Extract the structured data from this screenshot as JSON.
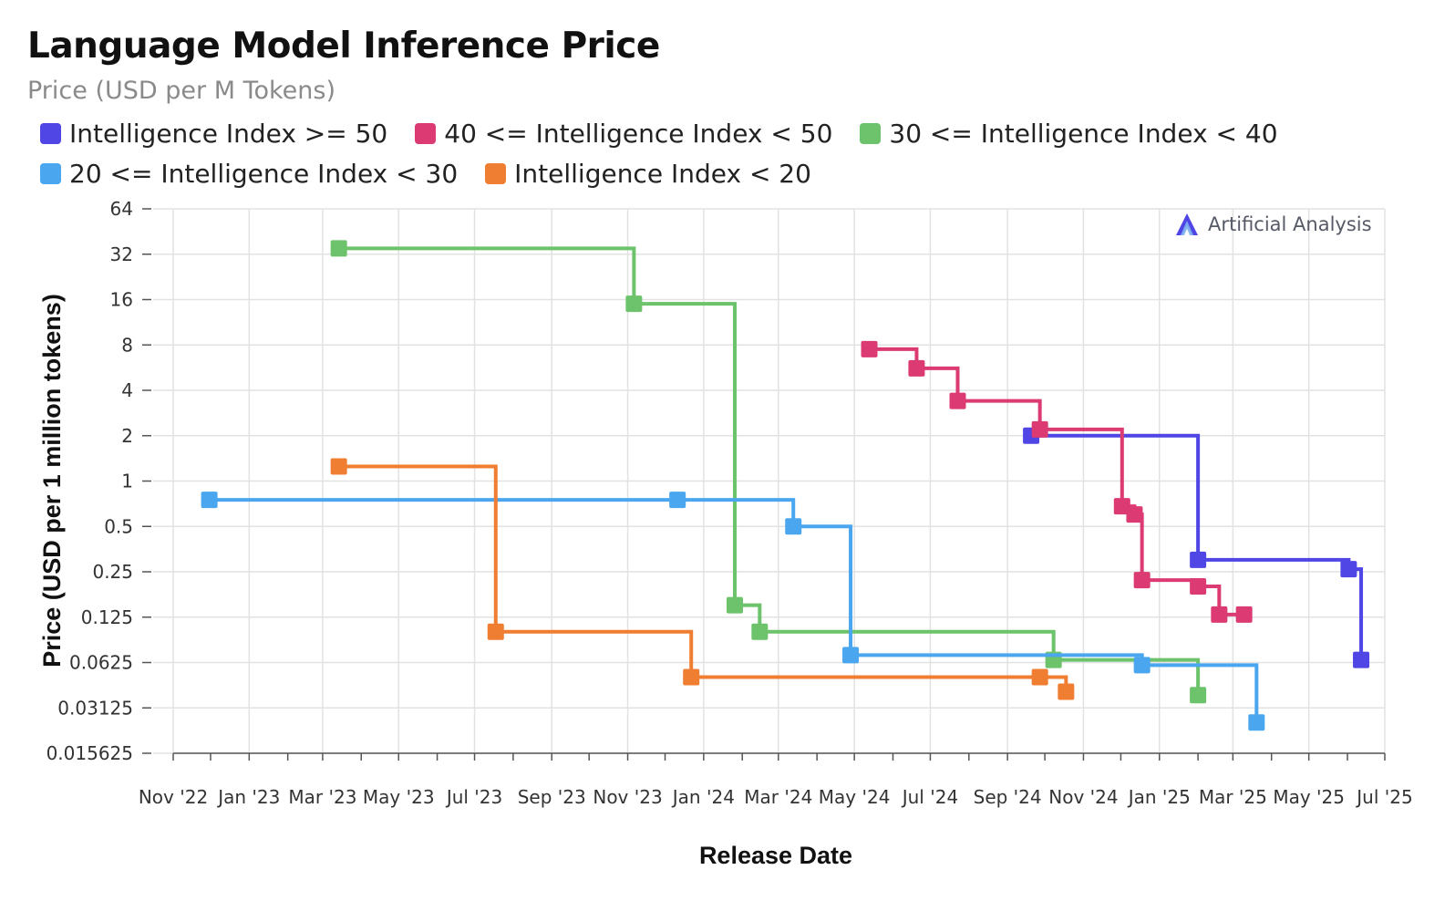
{
  "title": "Language Model Inference Price",
  "subtitle": "Price (USD per M Tokens)",
  "watermark": "Artificial Analysis",
  "chart_data": {
    "type": "line",
    "step": true,
    "xlabel": "Release Date",
    "ylabel": "Price (USD per 1 million tokens)",
    "yscale": "log2",
    "ylim": [
      0.015625,
      64
    ],
    "yticks": [
      64,
      32,
      16,
      8,
      4,
      2,
      1,
      0.5,
      0.25,
      0.125,
      0.0625,
      0.03125,
      0.015625
    ],
    "ytick_labels": [
      "64",
      "32",
      "16",
      "8",
      "4",
      "2",
      "1",
      "0.5",
      "0.25",
      "0.125",
      "0.0625",
      "0.03125",
      "0.015625"
    ],
    "xlim": [
      "2022-11-01",
      "2025-07-01"
    ],
    "xticks": [
      "2022-11-01",
      "2023-01-01",
      "2023-03-01",
      "2023-05-01",
      "2023-07-01",
      "2023-09-01",
      "2023-11-01",
      "2024-01-01",
      "2024-03-01",
      "2024-05-01",
      "2024-07-01",
      "2024-09-01",
      "2024-11-01",
      "2025-01-01",
      "2025-03-01",
      "2025-05-01",
      "2025-07-01"
    ],
    "xtick_labels": [
      "Nov '22",
      "Jan '23",
      "Mar '23",
      "May '23",
      "Jul '23",
      "Sep '23",
      "Nov '23",
      "Jan '24",
      "Mar '24",
      "May '24",
      "Jul '24",
      "Sep '24",
      "Nov '24",
      "Jan '25",
      "Mar '25",
      "May '25",
      "Jul '25"
    ],
    "grid": true,
    "legend_position": "top",
    "series": [
      {
        "name": "Intelligence Index >= 50",
        "color": "#4f46e5",
        "points": [
          [
            "2024-09-20",
            2.0
          ],
          [
            "2025-02-01",
            0.3
          ],
          [
            "2025-06-02",
            0.26
          ],
          [
            "2025-06-12",
            0.065
          ]
        ]
      },
      {
        "name": "40 <= Intelligence Index < 50",
        "color": "#db3a72",
        "points": [
          [
            "2024-05-13",
            7.5
          ],
          [
            "2024-06-20",
            5.6
          ],
          [
            "2024-07-23",
            3.4
          ],
          [
            "2024-09-27",
            2.2
          ],
          [
            "2024-12-02",
            0.68
          ],
          [
            "2024-12-12",
            0.6
          ],
          [
            "2024-12-18",
            0.22
          ],
          [
            "2025-02-01",
            0.2
          ],
          [
            "2025-02-18",
            0.13
          ],
          [
            "2025-03-10",
            0.13
          ]
        ]
      },
      {
        "name": "30 <= Intelligence Index < 40",
        "color": "#6cc36b",
        "points": [
          [
            "2023-03-14",
            35
          ],
          [
            "2023-11-06",
            15
          ],
          [
            "2024-01-26",
            0.15
          ],
          [
            "2024-02-15",
            0.1
          ],
          [
            "2024-10-08",
            0.065
          ],
          [
            "2025-02-01",
            0.038
          ]
        ]
      },
      {
        "name": "20 <= Intelligence Index < 30",
        "color": "#4aa7ef",
        "points": [
          [
            "2022-11-30",
            0.75
          ],
          [
            "2023-12-11",
            0.75
          ],
          [
            "2024-03-13",
            0.5
          ],
          [
            "2024-04-28",
            0.07
          ],
          [
            "2024-12-18",
            0.06
          ],
          [
            "2025-03-20",
            0.025
          ]
        ]
      },
      {
        "name": "Intelligence Index < 20",
        "color": "#ef7d32",
        "points": [
          [
            "2023-03-14",
            1.25
          ],
          [
            "2023-07-18",
            0.1
          ],
          [
            "2023-12-22",
            0.05
          ],
          [
            "2024-09-27",
            0.05
          ],
          [
            "2024-10-18",
            0.04
          ]
        ]
      }
    ]
  }
}
